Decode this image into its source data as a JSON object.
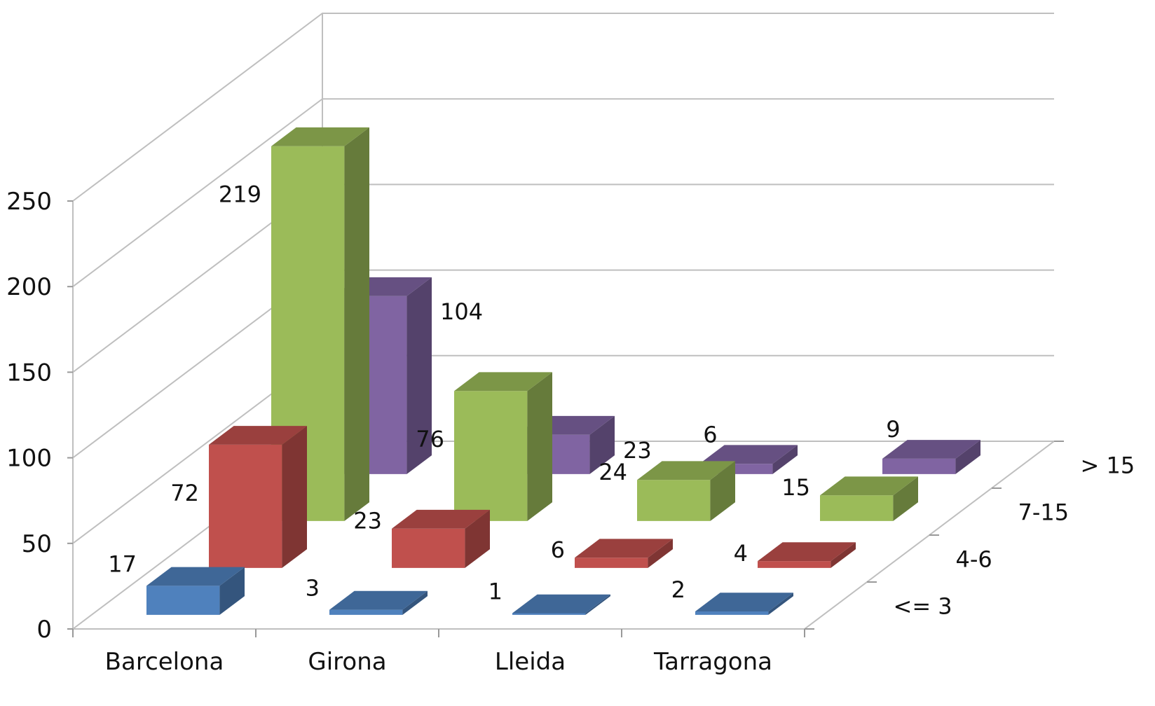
{
  "chart_data": {
    "type": "bar",
    "categories": [
      "Barcelona",
      "Girona",
      "Lleida",
      "Tarragona"
    ],
    "series": [
      {
        "name": "<= 3",
        "values": [
          17,
          3,
          1,
          2
        ]
      },
      {
        "name": "4-6",
        "values": [
          72,
          23,
          6,
          4
        ]
      },
      {
        "name": "7-15",
        "values": [
          219,
          76,
          24,
          15
        ]
      },
      {
        "name": "> 15",
        "values": [
          104,
          23,
          6,
          9
        ]
      }
    ],
    "yticks": [
      0,
      50,
      100,
      150,
      200,
      250
    ],
    "ylim": [
      0,
      250
    ],
    "grid": true,
    "colors": {
      "<= 3": "#4F81BD",
      "4-6": "#C0504D",
      "7-15": "#9BBB59",
      "> 15": "#8064A2"
    }
  }
}
